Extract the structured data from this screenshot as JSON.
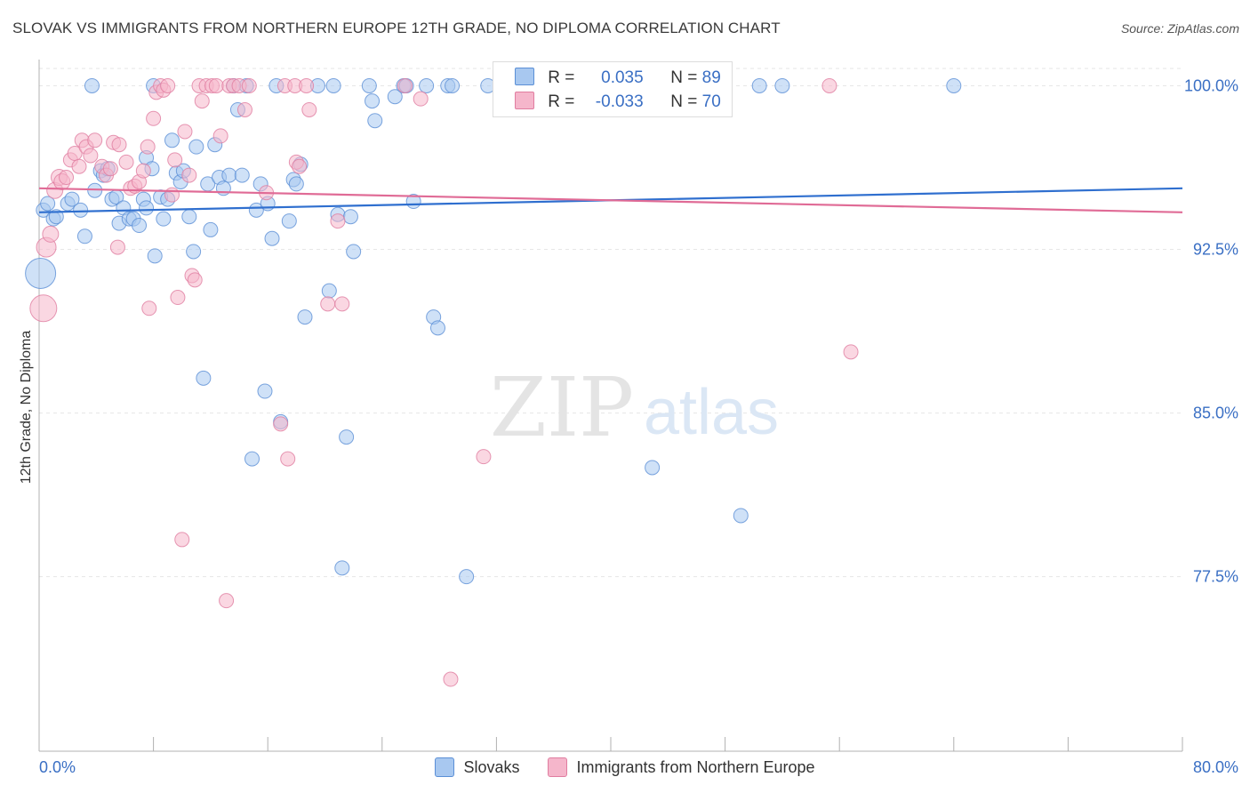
{
  "header": {
    "title": "SLOVAK VS IMMIGRANTS FROM NORTHERN EUROPE 12TH GRADE, NO DIPLOMA CORRELATION CHART",
    "source": "Source: ZipAtlas.com"
  },
  "watermark": {
    "zip": "ZIP",
    "atlas": "atlas"
  },
  "legend": {
    "r_label": "R =",
    "n_label": "N =",
    "series": [
      {
        "name": "Slovaks",
        "r": "0.035",
        "n": "89",
        "color": "#a8c8f0",
        "stroke": "#5b8fd6",
        "line": "#2f6fcf"
      },
      {
        "name": "Immigrants from Northern Europe",
        "r": "-0.033",
        "n": "70",
        "color": "#f5b6cb",
        "stroke": "#e07da0",
        "line": "#e06b96"
      }
    ]
  },
  "chart_data": {
    "type": "scatter",
    "title": "SLOVAK VS IMMIGRANTS FROM NORTHERN EUROPE 12TH GRADE, NO DIPLOMA CORRELATION CHART",
    "xlabel": "",
    "ylabel": "12th Grade, No Diploma",
    "xlim": [
      0,
      80
    ],
    "ylim": [
      69.5,
      101.2
    ],
    "x_tick_labels": [
      "0.0%",
      "80.0%"
    ],
    "y_ticks": [
      {
        "value": 100.0,
        "label": "100.0%"
      },
      {
        "value": 92.5,
        "label": "92.5%"
      },
      {
        "value": 85.0,
        "label": "85.0%"
      },
      {
        "value": 77.5,
        "label": "77.5%"
      }
    ],
    "grid": true,
    "series": [
      {
        "name": "Slovaks",
        "trend": {
          "x": [
            0,
            80
          ],
          "y": [
            94.2,
            95.3
          ]
        },
        "points": [
          {
            "x": 0.3,
            "y": 94.3,
            "s": 8
          },
          {
            "x": 0.6,
            "y": 94.6,
            "s": 8
          },
          {
            "x": 1.0,
            "y": 93.9,
            "s": 8
          },
          {
            "x": 1.2,
            "y": 94.0,
            "s": 8
          },
          {
            "x": 2.0,
            "y": 94.6,
            "s": 8
          },
          {
            "x": 2.3,
            "y": 94.8,
            "s": 8
          },
          {
            "x": 2.9,
            "y": 94.3,
            "s": 8
          },
          {
            "x": 3.2,
            "y": 93.1,
            "s": 8
          },
          {
            "x": 3.9,
            "y": 95.2,
            "s": 8
          },
          {
            "x": 4.3,
            "y": 96.1,
            "s": 8
          },
          {
            "x": 4.5,
            "y": 95.9,
            "s": 8
          },
          {
            "x": 4.8,
            "y": 96.2,
            "s": 8
          },
          {
            "x": 5.1,
            "y": 94.8,
            "s": 8
          },
          {
            "x": 5.4,
            "y": 94.9,
            "s": 8
          },
          {
            "x": 5.6,
            "y": 93.7,
            "s": 8
          },
          {
            "x": 5.9,
            "y": 94.4,
            "s": 8
          },
          {
            "x": 6.3,
            "y": 93.9,
            "s": 8
          },
          {
            "x": 6.6,
            "y": 93.9,
            "s": 8
          },
          {
            "x": 7.0,
            "y": 93.6,
            "s": 8
          },
          {
            "x": 7.3,
            "y": 94.8,
            "s": 8
          },
          {
            "x": 7.5,
            "y": 94.4,
            "s": 8
          },
          {
            "x": 7.5,
            "y": 96.7,
            "s": 8
          },
          {
            "x": 7.9,
            "y": 96.2,
            "s": 8
          },
          {
            "x": 8.1,
            "y": 92.2,
            "s": 8
          },
          {
            "x": 8.5,
            "y": 94.9,
            "s": 8
          },
          {
            "x": 8.7,
            "y": 93.9,
            "s": 8
          },
          {
            "x": 9.0,
            "y": 94.8,
            "s": 8
          },
          {
            "x": 9.3,
            "y": 97.5,
            "s": 8
          },
          {
            "x": 9.6,
            "y": 96.0,
            "s": 8
          },
          {
            "x": 9.9,
            "y": 95.6,
            "s": 8
          },
          {
            "x": 10.1,
            "y": 96.1,
            "s": 8
          },
          {
            "x": 10.5,
            "y": 94.0,
            "s": 8
          },
          {
            "x": 10.8,
            "y": 92.4,
            "s": 8
          },
          {
            "x": 11.0,
            "y": 97.2,
            "s": 8
          },
          {
            "x": 11.5,
            "y": 86.6,
            "s": 8
          },
          {
            "x": 11.8,
            "y": 95.5,
            "s": 8
          },
          {
            "x": 12.0,
            "y": 93.4,
            "s": 8
          },
          {
            "x": 12.3,
            "y": 97.3,
            "s": 8
          },
          {
            "x": 12.6,
            "y": 95.8,
            "s": 8
          },
          {
            "x": 12.9,
            "y": 95.3,
            "s": 8
          },
          {
            "x": 13.3,
            "y": 95.9,
            "s": 8
          },
          {
            "x": 13.6,
            "y": 100.0,
            "s": 8
          },
          {
            "x": 13.9,
            "y": 98.9,
            "s": 8
          },
          {
            "x": 14.2,
            "y": 95.9,
            "s": 8
          },
          {
            "x": 14.5,
            "y": 100.0,
            "s": 8
          },
          {
            "x": 14.9,
            "y": 82.9,
            "s": 8
          },
          {
            "x": 15.2,
            "y": 94.3,
            "s": 8
          },
          {
            "x": 15.5,
            "y": 95.5,
            "s": 8
          },
          {
            "x": 15.8,
            "y": 86.0,
            "s": 8
          },
          {
            "x": 16.0,
            "y": 94.6,
            "s": 8
          },
          {
            "x": 16.3,
            "y": 93.0,
            "s": 8
          },
          {
            "x": 16.6,
            "y": 100.0,
            "s": 8
          },
          {
            "x": 16.9,
            "y": 84.6,
            "s": 8
          },
          {
            "x": 17.5,
            "y": 93.8,
            "s": 8
          },
          {
            "x": 17.8,
            "y": 95.7,
            "s": 8
          },
          {
            "x": 18.0,
            "y": 95.5,
            "s": 8
          },
          {
            "x": 18.3,
            "y": 96.4,
            "s": 8
          },
          {
            "x": 18.6,
            "y": 89.4,
            "s": 8
          },
          {
            "x": 19.5,
            "y": 100.0,
            "s": 8
          },
          {
            "x": 20.3,
            "y": 90.6,
            "s": 8
          },
          {
            "x": 20.6,
            "y": 100.0,
            "s": 8
          },
          {
            "x": 20.9,
            "y": 94.1,
            "s": 8
          },
          {
            "x": 21.2,
            "y": 77.9,
            "s": 8
          },
          {
            "x": 21.5,
            "y": 83.9,
            "s": 8
          },
          {
            "x": 21.8,
            "y": 94.0,
            "s": 8
          },
          {
            "x": 22.0,
            "y": 92.4,
            "s": 8
          },
          {
            "x": 23.1,
            "y": 100.0,
            "s": 8
          },
          {
            "x": 23.3,
            "y": 99.3,
            "s": 8
          },
          {
            "x": 23.5,
            "y": 98.4,
            "s": 8
          },
          {
            "x": 24.9,
            "y": 99.5,
            "s": 8
          },
          {
            "x": 25.5,
            "y": 100.0,
            "s": 8
          },
          {
            "x": 25.7,
            "y": 100.0,
            "s": 8
          },
          {
            "x": 26.2,
            "y": 94.7,
            "s": 8
          },
          {
            "x": 27.1,
            "y": 100.0,
            "s": 8
          },
          {
            "x": 27.6,
            "y": 89.4,
            "s": 8
          },
          {
            "x": 27.9,
            "y": 88.9,
            "s": 8
          },
          {
            "x": 28.6,
            "y": 100.0,
            "s": 8
          },
          {
            "x": 28.9,
            "y": 100.0,
            "s": 8
          },
          {
            "x": 29.9,
            "y": 77.5,
            "s": 8
          },
          {
            "x": 31.4,
            "y": 100.0,
            "s": 8
          },
          {
            "x": 38.0,
            "y": 100.0,
            "s": 8
          },
          {
            "x": 42.9,
            "y": 82.5,
            "s": 8
          },
          {
            "x": 49.1,
            "y": 80.3,
            "s": 8
          },
          {
            "x": 50.4,
            "y": 100.0,
            "s": 8
          },
          {
            "x": 52.0,
            "y": 100.0,
            "s": 8
          },
          {
            "x": 64.0,
            "y": 100.0,
            "s": 8
          },
          {
            "x": 0.1,
            "y": 91.4,
            "s": 17
          },
          {
            "x": 8.0,
            "y": 100.0,
            "s": 8
          },
          {
            "x": 3.7,
            "y": 100.0,
            "s": 8
          }
        ]
      },
      {
        "name": "Immigrants from Northern Europe",
        "trend": {
          "x": [
            0,
            80
          ],
          "y": [
            95.3,
            94.2
          ]
        },
        "points": [
          {
            "x": 0.3,
            "y": 89.8,
            "s": 15
          },
          {
            "x": 0.5,
            "y": 92.6,
            "s": 11
          },
          {
            "x": 0.8,
            "y": 93.2,
            "s": 9
          },
          {
            "x": 1.1,
            "y": 95.2,
            "s": 9
          },
          {
            "x": 1.4,
            "y": 95.8,
            "s": 9
          },
          {
            "x": 1.6,
            "y": 95.6,
            "s": 9
          },
          {
            "x": 1.9,
            "y": 95.8,
            "s": 8
          },
          {
            "x": 2.2,
            "y": 96.6,
            "s": 8
          },
          {
            "x": 2.5,
            "y": 96.9,
            "s": 8
          },
          {
            "x": 2.8,
            "y": 96.3,
            "s": 8
          },
          {
            "x": 3.0,
            "y": 97.5,
            "s": 8
          },
          {
            "x": 3.3,
            "y": 97.2,
            "s": 8
          },
          {
            "x": 3.6,
            "y": 96.8,
            "s": 8
          },
          {
            "x": 3.9,
            "y": 97.5,
            "s": 8
          },
          {
            "x": 4.4,
            "y": 96.3,
            "s": 8
          },
          {
            "x": 4.7,
            "y": 95.9,
            "s": 8
          },
          {
            "x": 5.0,
            "y": 96.2,
            "s": 8
          },
          {
            "x": 5.2,
            "y": 97.4,
            "s": 8
          },
          {
            "x": 5.6,
            "y": 97.3,
            "s": 8
          },
          {
            "x": 5.5,
            "y": 92.6,
            "s": 8
          },
          {
            "x": 6.1,
            "y": 96.5,
            "s": 8
          },
          {
            "x": 6.4,
            "y": 95.3,
            "s": 8
          },
          {
            "x": 6.7,
            "y": 95.4,
            "s": 8
          },
          {
            "x": 7.0,
            "y": 95.6,
            "s": 8
          },
          {
            "x": 7.3,
            "y": 96.1,
            "s": 8
          },
          {
            "x": 7.6,
            "y": 97.2,
            "s": 8
          },
          {
            "x": 7.7,
            "y": 89.8,
            "s": 8
          },
          {
            "x": 8.0,
            "y": 98.5,
            "s": 8
          },
          {
            "x": 8.2,
            "y": 99.7,
            "s": 8
          },
          {
            "x": 8.5,
            "y": 100.0,
            "s": 8
          },
          {
            "x": 8.7,
            "y": 99.8,
            "s": 8
          },
          {
            "x": 9.0,
            "y": 100.0,
            "s": 8
          },
          {
            "x": 9.3,
            "y": 95.0,
            "s": 8
          },
          {
            "x": 9.5,
            "y": 96.6,
            "s": 8
          },
          {
            "x": 9.7,
            "y": 90.3,
            "s": 8
          },
          {
            "x": 10.0,
            "y": 79.2,
            "s": 8
          },
          {
            "x": 10.2,
            "y": 97.9,
            "s": 8
          },
          {
            "x": 10.5,
            "y": 95.9,
            "s": 8
          },
          {
            "x": 10.7,
            "y": 91.3,
            "s": 8
          },
          {
            "x": 10.9,
            "y": 91.1,
            "s": 8
          },
          {
            "x": 11.2,
            "y": 100.0,
            "s": 8
          },
          {
            "x": 11.4,
            "y": 99.3,
            "s": 8
          },
          {
            "x": 11.7,
            "y": 100.0,
            "s": 8
          },
          {
            "x": 12.1,
            "y": 100.0,
            "s": 8
          },
          {
            "x": 12.4,
            "y": 100.0,
            "s": 8
          },
          {
            "x": 12.7,
            "y": 97.7,
            "s": 8
          },
          {
            "x": 13.1,
            "y": 76.4,
            "s": 8
          },
          {
            "x": 13.3,
            "y": 100.0,
            "s": 8
          },
          {
            "x": 13.6,
            "y": 100.0,
            "s": 8
          },
          {
            "x": 14.0,
            "y": 100.0,
            "s": 8
          },
          {
            "x": 14.4,
            "y": 98.9,
            "s": 8
          },
          {
            "x": 14.7,
            "y": 100.0,
            "s": 8
          },
          {
            "x": 15.9,
            "y": 95.1,
            "s": 8
          },
          {
            "x": 16.9,
            "y": 84.5,
            "s": 8
          },
          {
            "x": 17.2,
            "y": 100.0,
            "s": 8
          },
          {
            "x": 17.4,
            "y": 82.9,
            "s": 8
          },
          {
            "x": 17.9,
            "y": 100.0,
            "s": 8
          },
          {
            "x": 18.0,
            "y": 96.5,
            "s": 8
          },
          {
            "x": 18.2,
            "y": 96.3,
            "s": 8
          },
          {
            "x": 18.7,
            "y": 100.0,
            "s": 8
          },
          {
            "x": 18.9,
            "y": 98.9,
            "s": 8
          },
          {
            "x": 20.2,
            "y": 90.0,
            "s": 8
          },
          {
            "x": 20.9,
            "y": 93.8,
            "s": 8
          },
          {
            "x": 21.2,
            "y": 90.0,
            "s": 8
          },
          {
            "x": 25.6,
            "y": 100.0,
            "s": 8
          },
          {
            "x": 26.7,
            "y": 99.4,
            "s": 8
          },
          {
            "x": 28.8,
            "y": 72.8,
            "s": 8
          },
          {
            "x": 31.1,
            "y": 83.0,
            "s": 8
          },
          {
            "x": 55.3,
            "y": 100.0,
            "s": 8
          },
          {
            "x": 56.8,
            "y": 87.8,
            "s": 8
          }
        ]
      }
    ]
  }
}
